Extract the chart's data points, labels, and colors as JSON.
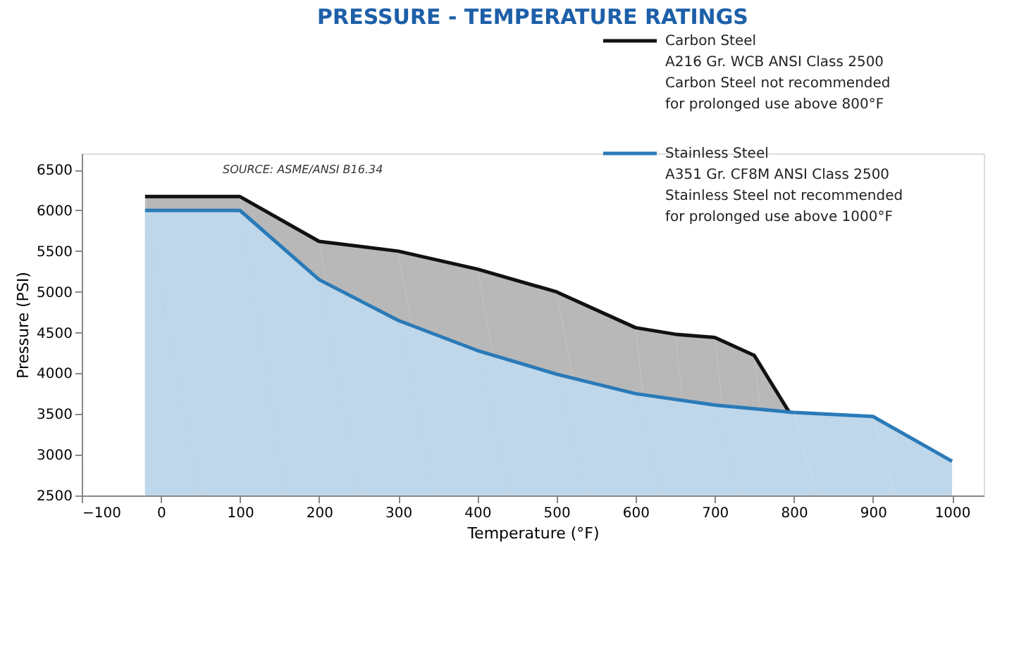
{
  "chart_data": {
    "type": "area",
    "title": "PRESSURE - TEMPERATURE RATINGS",
    "xlabel": "Temperature (°F)",
    "ylabel": "Pressure (PSI)",
    "xlim": [
      -100,
      1040
    ],
    "ylim": [
      2500,
      6700
    ],
    "xticks": [
      -100,
      0,
      100,
      200,
      300,
      400,
      500,
      600,
      700,
      800,
      900,
      1000
    ],
    "yticks": [
      2500,
      3000,
      3500,
      4000,
      4500,
      5000,
      5500,
      6000,
      6500
    ],
    "grid": false,
    "legend": "top right",
    "series": [
      {
        "name": "Carbon Steel",
        "color": "#111111",
        "x": [
          -20,
          100,
          200,
          300,
          400,
          500,
          600,
          650,
          700,
          750,
          800
        ],
        "values": [
          6170,
          6170,
          5620,
          5500,
          5280,
          5000,
          4560,
          4480,
          4440,
          4220,
          3430
        ]
      },
      {
        "name": "Stainless Steel",
        "color": "#2a7ab8",
        "x": [
          -20,
          100,
          200,
          300,
          400,
          500,
          600,
          700,
          800,
          900,
          1000
        ],
        "values": [
          6000,
          6000,
          5150,
          4650,
          4280,
          3990,
          3750,
          3610,
          3520,
          3470,
          2920
        ]
      }
    ],
    "annotations": [
      "SOURCE: ASME/ANSI B16.34",
      "A216 Gr. WCB ANSI Class 2500",
      "Carbon Steel not recommended",
      "for prolonged use above 800°F",
      "A351 Gr. CF8M ANSI Class 2500",
      "Stainless Steel not recommended",
      "for prolonged use above 1000°F"
    ]
  }
}
